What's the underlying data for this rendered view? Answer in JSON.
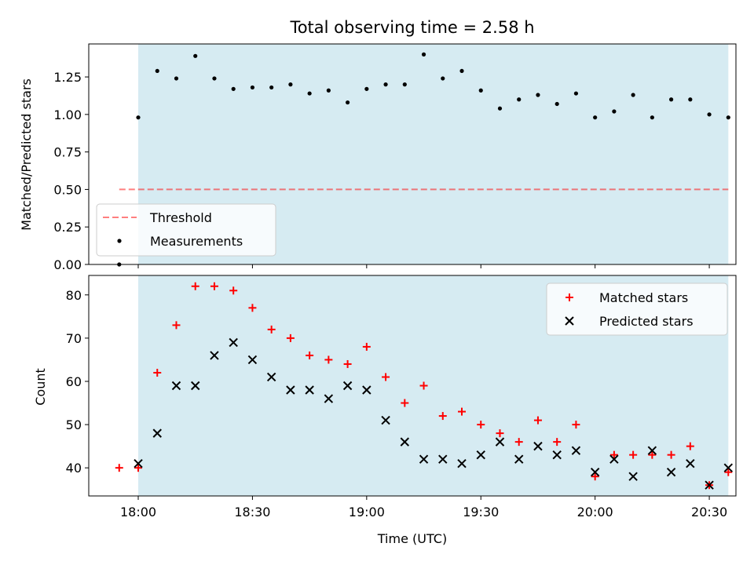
{
  "chart_data": [
    {
      "type": "scatter",
      "title": "Total observing time = 2.58 h",
      "ylabel": "Matched/Predicted stars",
      "xlim": [
        "17:47",
        "20:37"
      ],
      "ylim": [
        0,
        1.47
      ],
      "yticks": [
        0.0,
        0.25,
        0.5,
        0.75,
        1.0,
        1.25
      ],
      "ytick_labels": [
        "0.00",
        "0.25",
        "0.50",
        "0.75",
        "1.00",
        "1.25"
      ],
      "shaded_span": {
        "x_start": "18:00",
        "x_end": "20:35",
        "color": "#add8e6"
      },
      "threshold": {
        "name": "Threshold",
        "y": 0.5,
        "x_start": "17:55",
        "x_end": "20:35",
        "color": "#ff0000",
        "style": "dashed"
      },
      "legend_position": "lower-left",
      "series": [
        {
          "name": "Measurements",
          "color": "#000000",
          "marker": "dot",
          "x": [
            "17:55",
            "18:00",
            "18:05",
            "18:10",
            "18:15",
            "18:20",
            "18:25",
            "18:30",
            "18:35",
            "18:40",
            "18:45",
            "18:50",
            "18:55",
            "19:00",
            "19:05",
            "19:10",
            "19:15",
            "19:20",
            "19:25",
            "19:30",
            "19:35",
            "19:40",
            "19:45",
            "19:50",
            "19:55",
            "20:00",
            "20:05",
            "20:10",
            "20:15",
            "20:20",
            "20:25",
            "20:30",
            "20:35"
          ],
          "y": [
            0.0,
            0.98,
            1.29,
            1.24,
            1.39,
            1.24,
            1.17,
            1.18,
            1.18,
            1.2,
            1.14,
            1.16,
            1.08,
            1.17,
            1.2,
            1.2,
            1.4,
            1.24,
            1.29,
            1.16,
            1.04,
            1.1,
            1.13,
            1.07,
            1.14,
            0.98,
            1.02,
            1.13,
            0.98,
            1.1,
            1.1,
            1.0,
            0.98
          ]
        }
      ]
    },
    {
      "type": "scatter",
      "xlabel": "Time (UTC)",
      "ylabel": "Count",
      "xlim": [
        "17:47",
        "20:37"
      ],
      "ylim": [
        33.5,
        84.5
      ],
      "yticks": [
        40,
        50,
        60,
        70,
        80
      ],
      "ytick_labels": [
        "40",
        "50",
        "60",
        "70",
        "80"
      ],
      "xticks": [
        "18:00",
        "18:30",
        "19:00",
        "19:30",
        "20:00",
        "20:30"
      ],
      "xtick_labels": [
        "18:00",
        "18:30",
        "19:00",
        "19:30",
        "20:00",
        "20:30"
      ],
      "shaded_span": {
        "x_start": "18:00",
        "x_end": "20:35",
        "color": "#add8e6"
      },
      "legend_position": "top-right",
      "series": [
        {
          "name": "Matched stars",
          "color": "#ff0000",
          "marker": "plus",
          "x": [
            "17:55",
            "18:00",
            "18:05",
            "18:10",
            "18:15",
            "18:20",
            "18:25",
            "18:30",
            "18:35",
            "18:40",
            "18:45",
            "18:50",
            "18:55",
            "19:00",
            "19:05",
            "19:10",
            "19:15",
            "19:20",
            "19:25",
            "19:30",
            "19:35",
            "19:40",
            "19:45",
            "19:50",
            "19:55",
            "20:00",
            "20:05",
            "20:10",
            "20:15",
            "20:20",
            "20:25",
            "20:30",
            "20:35"
          ],
          "y": [
            40,
            40,
            62,
            73,
            82,
            82,
            81,
            77,
            72,
            70,
            66,
            65,
            64,
            68,
            61,
            55,
            59,
            52,
            53,
            50,
            48,
            46,
            51,
            46,
            50,
            38,
            43,
            43,
            43,
            43,
            45,
            36,
            39
          ]
        },
        {
          "name": "Predicted stars",
          "color": "#000000",
          "marker": "x",
          "x": [
            "18:00",
            "18:05",
            "18:10",
            "18:15",
            "18:20",
            "18:25",
            "18:30",
            "18:35",
            "18:40",
            "18:45",
            "18:50",
            "18:55",
            "19:00",
            "19:05",
            "19:10",
            "19:15",
            "19:20",
            "19:25",
            "19:30",
            "19:35",
            "19:40",
            "19:45",
            "19:50",
            "19:55",
            "20:00",
            "20:05",
            "20:10",
            "20:15",
            "20:20",
            "20:25",
            "20:30",
            "20:35"
          ],
          "y": [
            41,
            48,
            59,
            59,
            66,
            69,
            65,
            61,
            58,
            58,
            56,
            59,
            58,
            51,
            46,
            42,
            42,
            41,
            43,
            46,
            42,
            45,
            43,
            44,
            39,
            42,
            38,
            44,
            39,
            41,
            36,
            40
          ]
        }
      ]
    }
  ]
}
